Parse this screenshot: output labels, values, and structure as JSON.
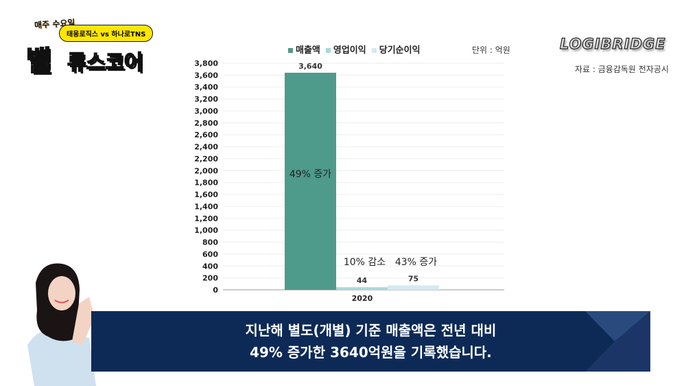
{
  "logo": {
    "tagline": "매주 수요일",
    "matchup": "태웅로직스 vs 하나로TNS",
    "title_a": "밸",
    "title_b": "류스코어"
  },
  "brand": "LOGIBRIDGE",
  "source": "자료 : 금융감독원 전자공시",
  "banner": {
    "line1": "지난해 별도(개별) 기준 매출액은 전년 대비",
    "line2": "49% 증가한 3640억원을 기록했습니다."
  },
  "chart_data": {
    "type": "bar",
    "unit_label": "단위 : 억원",
    "categories": [
      "2020"
    ],
    "series": [
      {
        "name": "매출액",
        "values": [
          3640
        ],
        "label": "3,640",
        "annotation": "49% 증가",
        "color": "#4e9a8b"
      },
      {
        "name": "영업이익",
        "values": [
          44
        ],
        "label": "44",
        "annotation": "10% 감소",
        "color": "#a9d9d9"
      },
      {
        "name": "당기순이익",
        "values": [
          75
        ],
        "label": "75",
        "annotation": "43% 증가",
        "color": "#d4eaf3"
      }
    ],
    "ylim": [
      0,
      3800
    ],
    "yticks": [
      "0",
      "200",
      "400",
      "600",
      "800",
      "1,000",
      "1,200",
      "1,400",
      "1,600",
      "1,800",
      "2,000",
      "2,200",
      "2,400",
      "2,600",
      "2,800",
      "3,000",
      "3,200",
      "3,400",
      "3,600",
      "3,800"
    ],
    "grid": true,
    "legend": "top"
  }
}
